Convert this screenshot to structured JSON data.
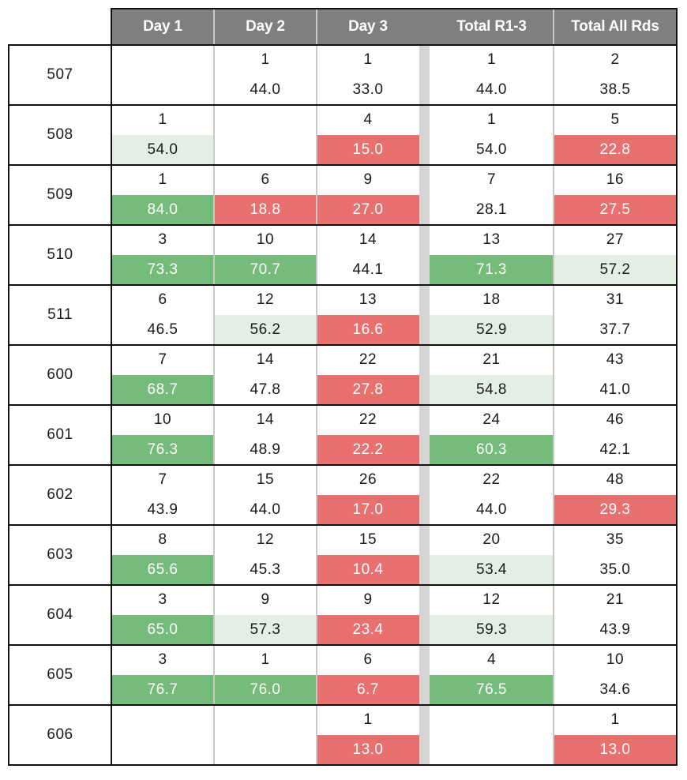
{
  "columns": [
    "Day 1",
    "Day 2",
    "Day 3",
    "Total R1-3",
    "Total All Rds"
  ],
  "colors": {
    "header_bg": "#7f7f7f",
    "header_text": "#ffffff",
    "green_dark": "#75bb7c",
    "green_light": "#e3efe5",
    "red": "#e8716f",
    "separator": "#d4d4d4"
  },
  "rows": [
    {
      "label": "507",
      "cells": [
        {
          "n": "",
          "v": "",
          "fill": null
        },
        {
          "n": "1",
          "v": "44.0",
          "fill": null
        },
        {
          "n": "1",
          "v": "33.0",
          "fill": null
        },
        {
          "n": "1",
          "v": "44.0",
          "fill": null
        },
        {
          "n": "2",
          "v": "38.5",
          "fill": null
        }
      ]
    },
    {
      "label": "508",
      "cells": [
        {
          "n": "1",
          "v": "54.0",
          "fill": "green_light"
        },
        {
          "n": "",
          "v": "",
          "fill": null
        },
        {
          "n": "4",
          "v": "15.0",
          "fill": "red"
        },
        {
          "n": "1",
          "v": "54.0",
          "fill": null
        },
        {
          "n": "5",
          "v": "22.8",
          "fill": "red"
        }
      ]
    },
    {
      "label": "509",
      "cells": [
        {
          "n": "1",
          "v": "84.0",
          "fill": "green_dark"
        },
        {
          "n": "6",
          "v": "18.8",
          "fill": "red"
        },
        {
          "n": "9",
          "v": "27.0",
          "fill": "red"
        },
        {
          "n": "7",
          "v": "28.1",
          "fill": null
        },
        {
          "n": "16",
          "v": "27.5",
          "fill": "red"
        }
      ]
    },
    {
      "label": "510",
      "cells": [
        {
          "n": "3",
          "v": "73.3",
          "fill": "green_dark"
        },
        {
          "n": "10",
          "v": "70.7",
          "fill": "green_dark"
        },
        {
          "n": "14",
          "v": "44.1",
          "fill": null
        },
        {
          "n": "13",
          "v": "71.3",
          "fill": "green_dark"
        },
        {
          "n": "27",
          "v": "57.2",
          "fill": "green_light"
        }
      ]
    },
    {
      "label": "511",
      "cells": [
        {
          "n": "6",
          "v": "46.5",
          "fill": null
        },
        {
          "n": "12",
          "v": "56.2",
          "fill": "green_light"
        },
        {
          "n": "13",
          "v": "16.6",
          "fill": "red"
        },
        {
          "n": "18",
          "v": "52.9",
          "fill": "green_light"
        },
        {
          "n": "31",
          "v": "37.7",
          "fill": null
        }
      ]
    },
    {
      "label": "600",
      "cells": [
        {
          "n": "7",
          "v": "68.7",
          "fill": "green_dark"
        },
        {
          "n": "14",
          "v": "47.8",
          "fill": null
        },
        {
          "n": "22",
          "v": "27.8",
          "fill": "red"
        },
        {
          "n": "21",
          "v": "54.8",
          "fill": "green_light"
        },
        {
          "n": "43",
          "v": "41.0",
          "fill": null
        }
      ]
    },
    {
      "label": "601",
      "cells": [
        {
          "n": "10",
          "v": "76.3",
          "fill": "green_dark"
        },
        {
          "n": "14",
          "v": "48.9",
          "fill": null
        },
        {
          "n": "22",
          "v": "22.2",
          "fill": "red"
        },
        {
          "n": "24",
          "v": "60.3",
          "fill": "green_dark"
        },
        {
          "n": "46",
          "v": "42.1",
          "fill": null
        }
      ]
    },
    {
      "label": "602",
      "cells": [
        {
          "n": "7",
          "v": "43.9",
          "fill": null
        },
        {
          "n": "15",
          "v": "44.0",
          "fill": null
        },
        {
          "n": "26",
          "v": "17.0",
          "fill": "red"
        },
        {
          "n": "22",
          "v": "44.0",
          "fill": null
        },
        {
          "n": "48",
          "v": "29.3",
          "fill": "red"
        }
      ]
    },
    {
      "label": "603",
      "cells": [
        {
          "n": "8",
          "v": "65.6",
          "fill": "green_dark"
        },
        {
          "n": "12",
          "v": "45.3",
          "fill": null
        },
        {
          "n": "15",
          "v": "10.4",
          "fill": "red"
        },
        {
          "n": "20",
          "v": "53.4",
          "fill": "green_light"
        },
        {
          "n": "35",
          "v": "35.0",
          "fill": null
        }
      ]
    },
    {
      "label": "604",
      "cells": [
        {
          "n": "3",
          "v": "65.0",
          "fill": "green_dark"
        },
        {
          "n": "9",
          "v": "57.3",
          "fill": "green_light"
        },
        {
          "n": "9",
          "v": "23.4",
          "fill": "red"
        },
        {
          "n": "12",
          "v": "59.3",
          "fill": "green_light"
        },
        {
          "n": "21",
          "v": "43.9",
          "fill": null
        }
      ]
    },
    {
      "label": "605",
      "cells": [
        {
          "n": "3",
          "v": "76.7",
          "fill": "green_dark"
        },
        {
          "n": "1",
          "v": "76.0",
          "fill": "green_dark"
        },
        {
          "n": "6",
          "v": "6.7",
          "fill": "red"
        },
        {
          "n": "4",
          "v": "76.5",
          "fill": "green_dark"
        },
        {
          "n": "10",
          "v": "34.6",
          "fill": null
        }
      ]
    },
    {
      "label": "606",
      "cells": [
        {
          "n": "",
          "v": "",
          "fill": null
        },
        {
          "n": "",
          "v": "",
          "fill": null
        },
        {
          "n": "1",
          "v": "13.0",
          "fill": "red"
        },
        {
          "n": "",
          "v": "",
          "fill": null
        },
        {
          "n": "1",
          "v": "13.0",
          "fill": "red"
        }
      ]
    }
  ]
}
